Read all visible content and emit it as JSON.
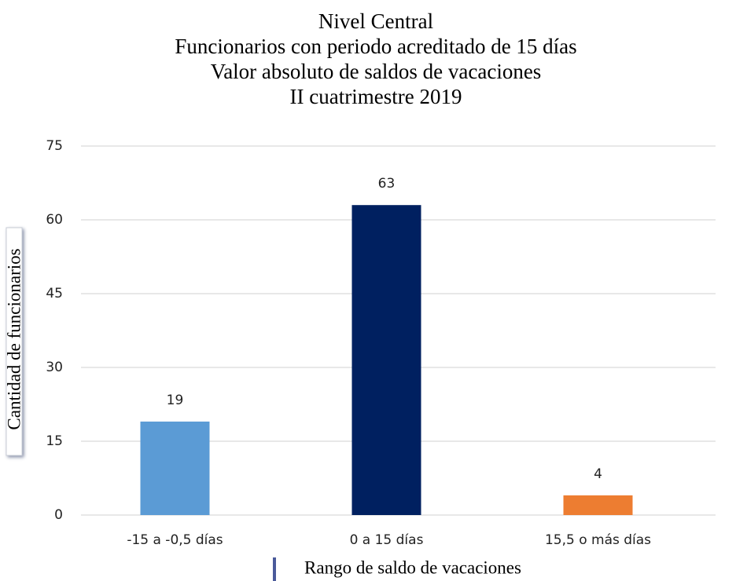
{
  "chart_data": {
    "type": "bar",
    "title": [
      "Nivel Central",
      "Funcionarios con periodo acreditado de 15 días",
      "Valor absoluto de saldos de vacaciones",
      "II cuatrimestre 2019"
    ],
    "x_label": "Rango de saldo de vacaciones",
    "y_label": "Cantidad de funcionarios",
    "categories": [
      "-15 a -0,5 días",
      "0 a 15 días",
      "15,5 o más días"
    ],
    "values": [
      19,
      63,
      4
    ],
    "colors": [
      "#5b9bd5",
      "#002060",
      "#ed7d31"
    ],
    "ylim": [
      0,
      75
    ],
    "yticks": [
      0,
      15,
      30,
      45,
      60,
      75
    ],
    "grid": true
  }
}
